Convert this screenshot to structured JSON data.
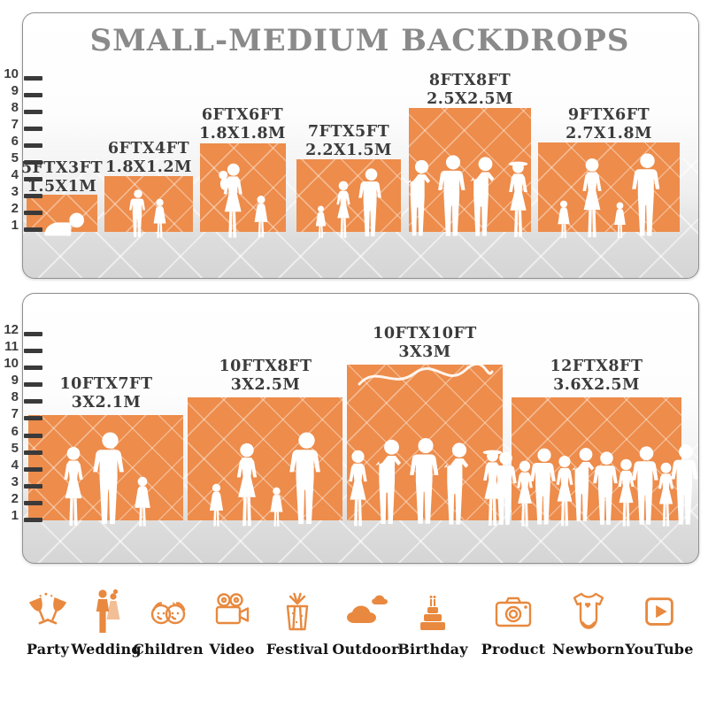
{
  "title": "SMALL-MEDIUM BACKDROPS",
  "colors": {
    "backdrop_orange": "#ED8C4B",
    "icon_orange": "#E8893F",
    "title_gray": "#8A8A8A",
    "label_dark": "#3B3B3B"
  },
  "panels": [
    {
      "name": "small-medium-top",
      "ruler": [
        "10",
        "9",
        "8",
        "7",
        "6",
        "5",
        "4",
        "3",
        "2",
        "1"
      ],
      "backdrops": [
        {
          "size_ft": "5FTX3FT",
          "size_m": "1.5X1M",
          "figures": "crawling baby"
        },
        {
          "size_ft": "6FTX4FT",
          "size_m": "1.8X1.2M",
          "figures": "boy and girl"
        },
        {
          "size_ft": "6FTX6FT",
          "size_m": "1.8X1.8M",
          "figures": "mother holding baby and girl"
        },
        {
          "size_ft": "7FTX5FT",
          "size_m": "2.2X1.5M",
          "figures": "toddler, woman and man"
        },
        {
          "size_ft": "8FTX8FT",
          "size_m": "2.5X2.5M",
          "figures": "four adults posing"
        },
        {
          "size_ft": "9FTX6FT",
          "size_m": "2.7X1.8M",
          "figures": "family of four"
        }
      ]
    },
    {
      "name": "small-medium-bottom",
      "ruler": [
        "12",
        "11",
        "10",
        "9",
        "8",
        "7",
        "6",
        "5",
        "4",
        "3",
        "2",
        "1"
      ],
      "backdrops": [
        {
          "size_ft": "10FTX7FT",
          "size_m": "3X2.1M",
          "figures": "woman, man and girl"
        },
        {
          "size_ft": "10FTX8FT",
          "size_m": "3X2.5M",
          "figures": "family of four holding hands"
        },
        {
          "size_ft": "10FTX10FT",
          "size_m": "3X3M",
          "figures": "group of five adults"
        },
        {
          "size_ft": "12FTX8FT",
          "size_m": "3.6X2.5M",
          "figures": "crowd of people"
        }
      ]
    }
  ],
  "categories": [
    {
      "label": "Party",
      "icon": "party-icon"
    },
    {
      "label": "Wedding",
      "icon": "wedding-icon"
    },
    {
      "label": "Children",
      "icon": "children-icon"
    },
    {
      "label": "Video",
      "icon": "video-icon"
    },
    {
      "label": "Festival",
      "icon": "festival-icon"
    },
    {
      "label": "Outdoor",
      "icon": "outdoor-icon"
    },
    {
      "label": "Birthday",
      "icon": "birthday-icon"
    },
    {
      "label": "Product",
      "icon": "product-icon"
    },
    {
      "label": "Newborn",
      "icon": "newborn-icon"
    },
    {
      "label": "YouTube",
      "icon": "youtube-icon"
    }
  ]
}
